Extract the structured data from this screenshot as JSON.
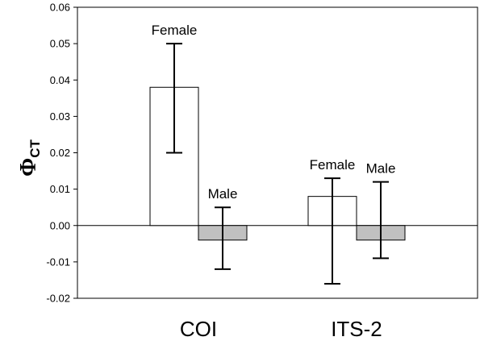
{
  "chart_data": {
    "type": "bar",
    "ylabel": {
      "symbol": "Φ",
      "subscript": "CT"
    },
    "ylim": [
      -0.02,
      0.06
    ],
    "yticks": [
      "-0.02",
      "-0.01",
      "0.00",
      "0.01",
      "0.02",
      "0.03",
      "0.04",
      "0.05",
      "0.06"
    ],
    "ytick_values": [
      -0.02,
      -0.01,
      0.0,
      0.01,
      0.02,
      0.03,
      0.04,
      0.05,
      0.06
    ],
    "categories": [
      "COI",
      "ITS-2"
    ],
    "bars": [
      {
        "category": "COI",
        "label": "Female",
        "value": 0.038,
        "err_low": 0.02,
        "err_high": 0.05,
        "color": "#ffffff"
      },
      {
        "category": "COI",
        "label": "Male",
        "value": -0.004,
        "err_low": -0.012,
        "err_high": 0.005,
        "color": "#c0c0c0"
      },
      {
        "category": "ITS-2",
        "label": "Female",
        "value": 0.008,
        "err_low": -0.016,
        "err_high": 0.013,
        "color": "#ffffff"
      },
      {
        "category": "ITS-2",
        "label": "Male",
        "value": -0.004,
        "err_low": -0.009,
        "err_high": 0.012,
        "color": "#c0c0c0"
      }
    ],
    "grid": false,
    "zero_line": true
  }
}
